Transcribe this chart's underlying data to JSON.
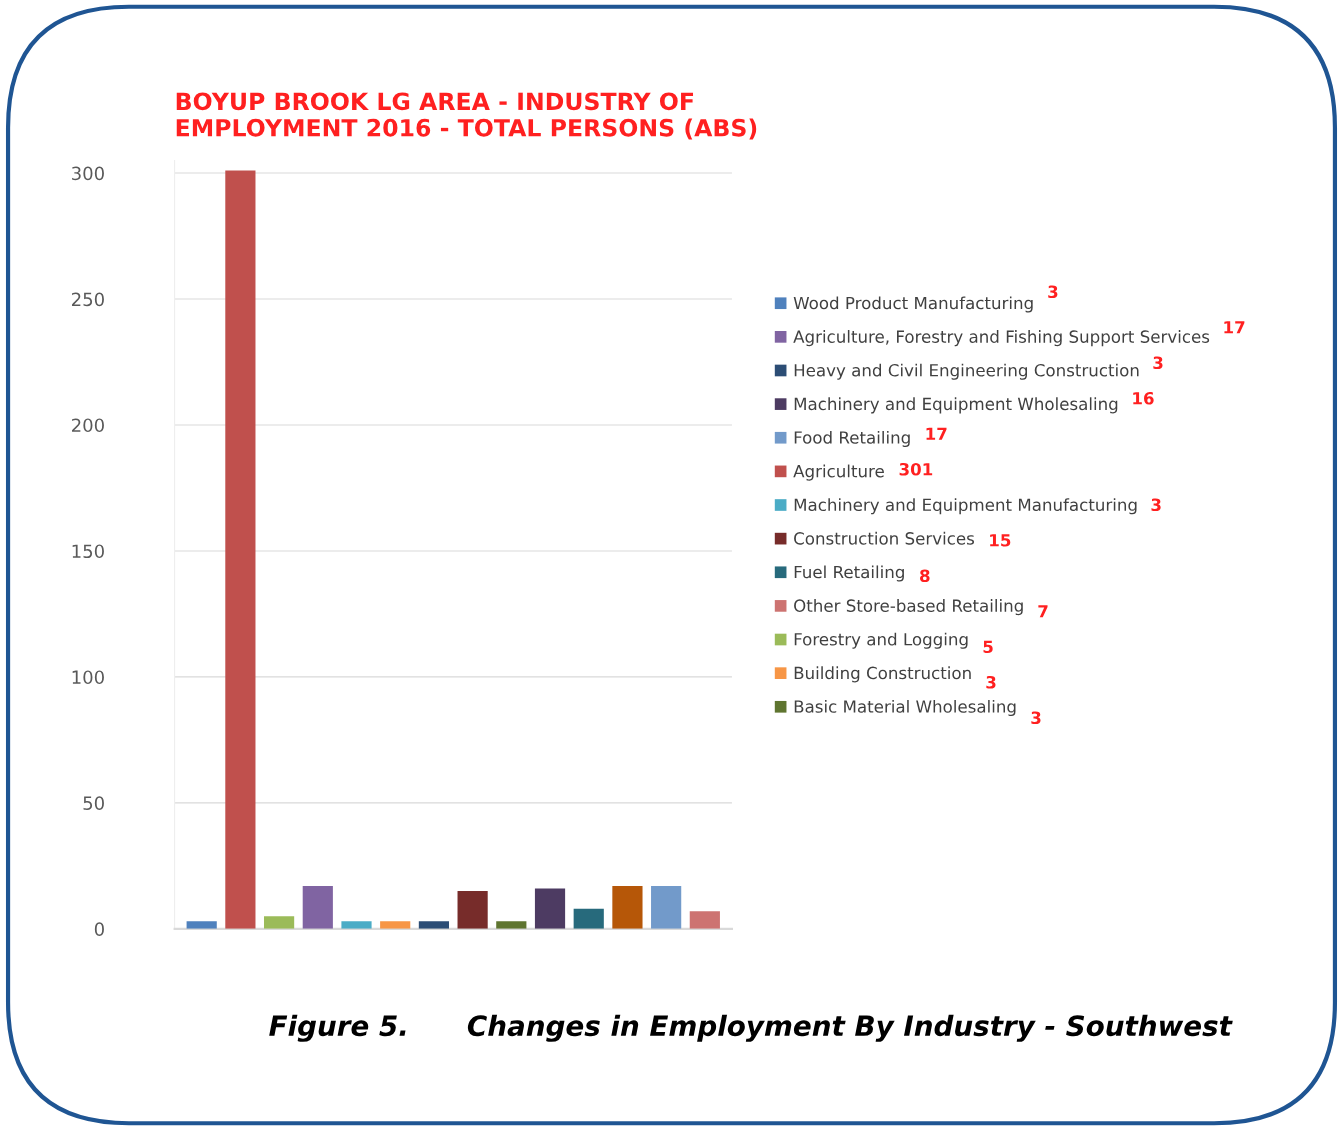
{
  "chart_data": {
    "type": "bar",
    "title": "BOYUP BROOK LG AREA - INDUSTRY OF\nEMPLOYMENT 2016 - TOTAL PERSONS (ABS)",
    "categories": [
      null,
      null,
      null,
      null,
      null,
      null,
      null,
      null,
      null,
      null,
      null,
      null,
      null,
      null
    ],
    "series": [
      {
        "name": "Wood Product Manufacturing",
        "color": "#4f81bd",
        "values": [
          3,
          null,
          null,
          null,
          null,
          null,
          null,
          null,
          null,
          null,
          null,
          null,
          null,
          null
        ]
      },
      {
        "name": "Agriculture, Forestry and Fishing Support Services",
        "color": "#8064a2",
        "values": [
          null,
          null,
          null,
          17,
          null,
          null,
          null,
          null,
          null,
          null,
          null,
          null,
          null,
          null
        ]
      },
      {
        "name": "Heavy and Civil Engineering Construction",
        "color": "#2c4d75",
        "values": [
          null,
          null,
          null,
          null,
          null,
          null,
          3,
          null,
          null,
          null,
          null,
          null,
          null,
          null
        ]
      },
      {
        "name": "Machinery and Equipment Wholesaling",
        "color": "#4d3b62",
        "values": [
          null,
          null,
          null,
          null,
          null,
          null,
          null,
          null,
          null,
          16,
          null,
          null,
          null,
          null
        ]
      },
      {
        "name": "Food Retailing",
        "color": "#729aca",
        "values": [
          null,
          null,
          null,
          null,
          null,
          null,
          null,
          null,
          null,
          null,
          null,
          null,
          17,
          null
        ]
      },
      {
        "name": "Agriculture",
        "color": "#c0504d",
        "values": [
          null,
          301,
          null,
          null,
          null,
          null,
          null,
          null,
          null,
          null,
          null,
          null,
          null,
          null
        ]
      },
      {
        "name": "Machinery and Equipment Manufacturing",
        "color": "#4bacc6",
        "values": [
          null,
          null,
          null,
          null,
          3,
          null,
          null,
          null,
          null,
          null,
          null,
          null,
          null,
          null
        ]
      },
      {
        "name": "Construction Services",
        "color": "#772c2a",
        "values": [
          null,
          null,
          null,
          null,
          null,
          null,
          null,
          15,
          null,
          null,
          null,
          null,
          null,
          null
        ]
      },
      {
        "name": "Fuel Retailing",
        "color": "#276a7c",
        "values": [
          null,
          null,
          null,
          null,
          null,
          null,
          null,
          null,
          null,
          null,
          8,
          null,
          null,
          null
        ]
      },
      {
        "name": "Other Store-based Retailing",
        "color": "#cd7371",
        "values": [
          null,
          null,
          null,
          null,
          null,
          null,
          null,
          null,
          null,
          null,
          null,
          null,
          null,
          7
        ]
      },
      {
        "name": "Forestry and Logging",
        "color": "#9bbb59",
        "values": [
          null,
          null,
          5,
          null,
          null,
          null,
          null,
          null,
          null,
          null,
          null,
          null,
          null,
          null
        ]
      },
      {
        "name": "Building Construction",
        "color": "#f79646",
        "values": [
          null,
          null,
          null,
          null,
          null,
          3,
          null,
          null,
          null,
          null,
          null,
          null,
          null,
          null
        ]
      },
      {
        "name": "Basic Material Wholesaling",
        "color": "#5f7530",
        "values": [
          null,
          null,
          null,
          null,
          null,
          null,
          null,
          null,
          3,
          null,
          null,
          null,
          null,
          null
        ]
      },
      {
        "color": "#b65708",
        "values": [
          null,
          null,
          null,
          null,
          null,
          null,
          null,
          null,
          null,
          null,
          null,
          17,
          null,
          null
        ]
      }
    ],
    "ylim": [
      0,
      305
    ],
    "yticks": [
      0,
      50,
      100,
      150,
      200,
      250,
      300
    ],
    "grid": "y",
    "legend": "right",
    "annotations": [
      "Figure 5.      Changes in Employment By Industry - Southwest",
      "3",
      "17",
      "3",
      "16",
      "17",
      "301",
      "3",
      "15",
      "8",
      "7",
      "5",
      "3",
      "3"
    ]
  }
}
